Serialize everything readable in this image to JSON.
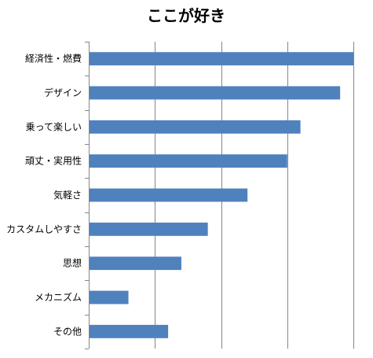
{
  "chart_data": {
    "type": "bar",
    "orientation": "horizontal",
    "title": "ここが好き",
    "categories": [
      "経済性・燃費",
      "デザイン",
      "乗って楽しい",
      "頑丈・実用性",
      "気軽さ",
      "カスタムしやすさ",
      "思想",
      "メカニズム",
      "その他"
    ],
    "values": [
      40,
      38,
      32,
      30,
      24,
      18,
      14,
      6,
      12
    ],
    "xlim": [
      0,
      40
    ],
    "x_tick_step": 10,
    "x_tick_labels_visible": false,
    "grid": true,
    "legend": "none",
    "bar_color": "#4f81bd"
  }
}
